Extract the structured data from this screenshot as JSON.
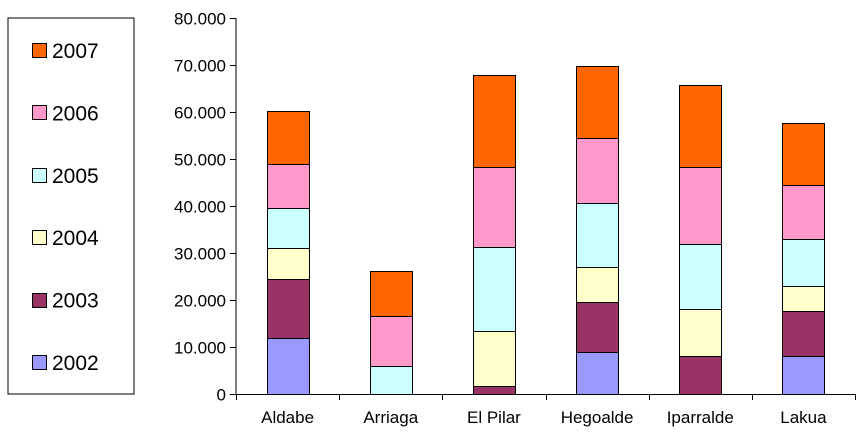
{
  "chart_data": {
    "type": "bar",
    "stacked": true,
    "title": "",
    "xlabel": "",
    "ylabel": "",
    "ylim": [
      0,
      80000
    ],
    "yticks": [
      0,
      10000,
      20000,
      30000,
      40000,
      50000,
      60000,
      70000,
      80000
    ],
    "ytick_labels": [
      "0",
      "10.000",
      "20.000",
      "30.000",
      "40.000",
      "50.000",
      "60.000",
      "70.000",
      "80.000"
    ],
    "grid": false,
    "legend": "left",
    "categories": [
      "Aldabe",
      "Arriaga",
      "El Pilar",
      "Hegoalde",
      "Iparralde",
      "Lakua"
    ],
    "series": [
      {
        "name": "2002",
        "color": "#9999ff",
        "values": [
          12000,
          0,
          0,
          9000,
          0,
          8000
        ]
      },
      {
        "name": "2003",
        "color": "#993366",
        "values": [
          12500,
          0,
          1800,
          10500,
          8000,
          9700
        ]
      },
      {
        "name": "2004",
        "color": "#ffffcc",
        "values": [
          6500,
          0,
          11500,
          7500,
          10000,
          5300
        ]
      },
      {
        "name": "2005",
        "color": "#ccffff",
        "values": [
          8500,
          6000,
          18000,
          13600,
          14000,
          10000
        ]
      },
      {
        "name": "2006",
        "color": "#ff99cc",
        "values": [
          9500,
          10700,
          17000,
          13800,
          16300,
          11500
        ]
      },
      {
        "name": "2007",
        "color": "#ff6600",
        "values": [
          11300,
          9400,
          19500,
          15300,
          17500,
          13200
        ]
      }
    ]
  }
}
